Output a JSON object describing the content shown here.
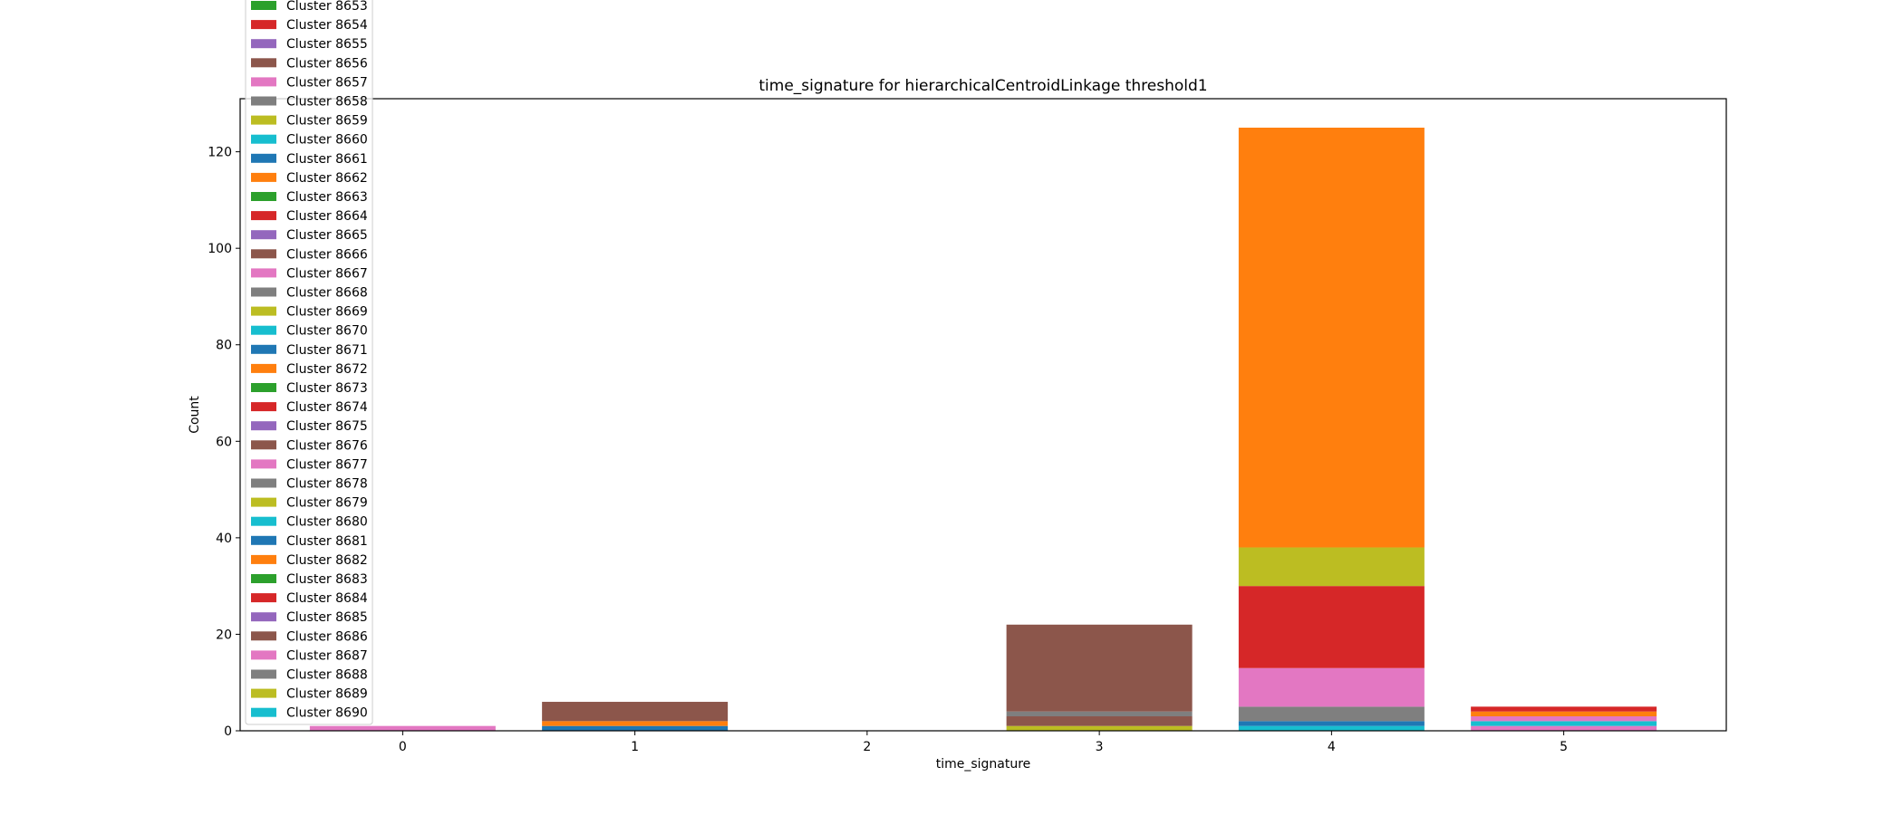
{
  "chart_data": {
    "type": "bar",
    "stacked": true,
    "title": "time_signature for hierarchicalCentroidLinkage threshold1",
    "xlabel": "time_signature",
    "ylabel": "Count",
    "categories": [
      "0",
      "1",
      "2",
      "3",
      "4",
      "5"
    ],
    "xlim": [
      -0.7,
      5.7
    ],
    "ylim": [
      0,
      131
    ],
    "yticks": [
      0,
      20,
      40,
      60,
      80,
      100,
      120
    ],
    "grid": false,
    "legend_position": "upper-left (overflowing above the plot)",
    "segments": [
      {
        "category": "0",
        "base": 0,
        "value": 1,
        "color": "#e377c2",
        "series": "Cluster 8687"
      },
      {
        "category": "1",
        "base": 0,
        "value": 1,
        "color": "#1f77b4",
        "series": "Cluster 8681"
      },
      {
        "category": "1",
        "base": 1,
        "value": 1,
        "color": "#ff7f0e",
        "series": "Cluster 8682"
      },
      {
        "category": "1",
        "base": 2,
        "value": 4,
        "color": "#8c564b",
        "series": "Cluster 8686"
      },
      {
        "category": "3",
        "base": 0,
        "value": 1,
        "color": "#bcbd22",
        "series": "Cluster 8689"
      },
      {
        "category": "3",
        "base": 1,
        "value": 2,
        "color": "#8c564b",
        "series": "Cluster 8676"
      },
      {
        "category": "3",
        "base": 3,
        "value": 1,
        "color": "#7f7f7f",
        "series": "Cluster 8678"
      },
      {
        "category": "3",
        "base": 4,
        "value": 18,
        "color": "#8c564b",
        "series": "Cluster 8686"
      },
      {
        "category": "4",
        "base": 0,
        "value": 1,
        "color": "#17becf",
        "series": "Cluster 8690"
      },
      {
        "category": "4",
        "base": 1,
        "value": 1,
        "color": "#1f77b4",
        "series": "Cluster 8681"
      },
      {
        "category": "4",
        "base": 2,
        "value": 3,
        "color": "#7f7f7f",
        "series": "Cluster 8688"
      },
      {
        "category": "4",
        "base": 5,
        "value": 8,
        "color": "#e377c2",
        "series": "Cluster 8687"
      },
      {
        "category": "4",
        "base": 13,
        "value": 17,
        "color": "#d62728",
        "series": "Cluster 8684"
      },
      {
        "category": "4",
        "base": 30,
        "value": 8,
        "color": "#bcbd22",
        "series": "Cluster 8689"
      },
      {
        "category": "4",
        "base": 38,
        "value": 87,
        "color": "#ff7f0e",
        "series": "Cluster 8682"
      },
      {
        "category": "5",
        "base": 0,
        "value": 1,
        "color": "#e377c2",
        "series": "Cluster 8677"
      },
      {
        "category": "5",
        "base": 1,
        "value": 1,
        "color": "#17becf",
        "series": "Cluster 8680"
      },
      {
        "category": "5",
        "base": 2,
        "value": 1,
        "color": "#e377c2",
        "series": "Cluster 8687"
      },
      {
        "category": "5",
        "base": 3,
        "value": 1,
        "color": "#ff7f0e",
        "series": "Cluster 8682"
      },
      {
        "category": "5",
        "base": 4,
        "value": 1,
        "color": "#d62728",
        "series": "Cluster 8684"
      }
    ],
    "legend": [
      {
        "name": "Cluster 8653",
        "color": "#2ca02c"
      },
      {
        "name": "Cluster 8654",
        "color": "#d62728"
      },
      {
        "name": "Cluster 8655",
        "color": "#9467bd"
      },
      {
        "name": "Cluster 8656",
        "color": "#8c564b"
      },
      {
        "name": "Cluster 8657",
        "color": "#e377c2"
      },
      {
        "name": "Cluster 8658",
        "color": "#7f7f7f"
      },
      {
        "name": "Cluster 8659",
        "color": "#bcbd22"
      },
      {
        "name": "Cluster 8660",
        "color": "#17becf"
      },
      {
        "name": "Cluster 8661",
        "color": "#1f77b4"
      },
      {
        "name": "Cluster 8662",
        "color": "#ff7f0e"
      },
      {
        "name": "Cluster 8663",
        "color": "#2ca02c"
      },
      {
        "name": "Cluster 8664",
        "color": "#d62728"
      },
      {
        "name": "Cluster 8665",
        "color": "#9467bd"
      },
      {
        "name": "Cluster 8666",
        "color": "#8c564b"
      },
      {
        "name": "Cluster 8667",
        "color": "#e377c2"
      },
      {
        "name": "Cluster 8668",
        "color": "#7f7f7f"
      },
      {
        "name": "Cluster 8669",
        "color": "#bcbd22"
      },
      {
        "name": "Cluster 8670",
        "color": "#17becf"
      },
      {
        "name": "Cluster 8671",
        "color": "#1f77b4"
      },
      {
        "name": "Cluster 8672",
        "color": "#ff7f0e"
      },
      {
        "name": "Cluster 8673",
        "color": "#2ca02c"
      },
      {
        "name": "Cluster 8674",
        "color": "#d62728"
      },
      {
        "name": "Cluster 8675",
        "color": "#9467bd"
      },
      {
        "name": "Cluster 8676",
        "color": "#8c564b"
      },
      {
        "name": "Cluster 8677",
        "color": "#e377c2"
      },
      {
        "name": "Cluster 8678",
        "color": "#7f7f7f"
      },
      {
        "name": "Cluster 8679",
        "color": "#bcbd22"
      },
      {
        "name": "Cluster 8680",
        "color": "#17becf"
      },
      {
        "name": "Cluster 8681",
        "color": "#1f77b4"
      },
      {
        "name": "Cluster 8682",
        "color": "#ff7f0e"
      },
      {
        "name": "Cluster 8683",
        "color": "#2ca02c"
      },
      {
        "name": "Cluster 8684",
        "color": "#d62728"
      },
      {
        "name": "Cluster 8685",
        "color": "#9467bd"
      },
      {
        "name": "Cluster 8686",
        "color": "#8c564b"
      },
      {
        "name": "Cluster 8687",
        "color": "#e377c2"
      },
      {
        "name": "Cluster 8688",
        "color": "#7f7f7f"
      },
      {
        "name": "Cluster 8689",
        "color": "#bcbd22"
      },
      {
        "name": "Cluster 8690",
        "color": "#17becf"
      }
    ]
  }
}
